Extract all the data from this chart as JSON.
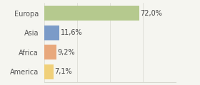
{
  "categories": [
    "Europa",
    "Asia",
    "Africa",
    "America"
  ],
  "values": [
    72.0,
    11.6,
    9.2,
    7.1
  ],
  "labels": [
    "72,0%",
    "11,6%",
    "9,2%",
    "7,1%"
  ],
  "colors": [
    "#b5c98e",
    "#7b9bc8",
    "#e8a87c",
    "#f0d07a"
  ],
  "xlim": [
    0,
    100
  ],
  "background_color": "#f5f5f0",
  "label_fontsize": 7.0,
  "tick_fontsize": 7.0,
  "bar_height": 0.75,
  "grid_color": "#d8d8d0"
}
